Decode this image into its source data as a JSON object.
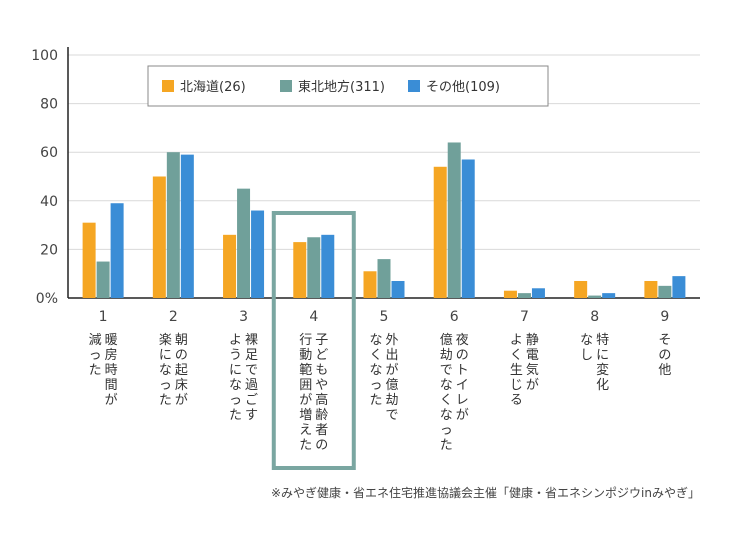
{
  "chart_data": {
    "type": "bar",
    "ylim": [
      0,
      100
    ],
    "y_ticks": [
      "100",
      "80",
      "60",
      "40",
      "20",
      "0%"
    ],
    "y_tick_values": [
      100,
      80,
      60,
      40,
      20,
      0
    ],
    "categories": [
      "1",
      "2",
      "3",
      "4",
      "5",
      "6",
      "7",
      "8",
      "9"
    ],
    "category_labels": [
      [
        "暖房時間が",
        "減った"
      ],
      [
        "朝の起床が",
        "楽になった"
      ],
      [
        "裸足で過ごす",
        "ようになった"
      ],
      [
        "子どもや高齢者の",
        "行動範囲が増えた"
      ],
      [
        "外出が億劫で",
        "なくなった"
      ],
      [
        "夜のトイレが",
        "億劫でなくなった"
      ],
      [
        "静電気が",
        "よく生じる"
      ],
      [
        "特に変化",
        "なし"
      ],
      [
        "その他"
      ]
    ],
    "series": [
      {
        "name": "北海道(26)",
        "color": "#f5a623",
        "values": [
          31,
          50,
          26,
          23,
          11,
          54,
          3,
          7,
          7
        ]
      },
      {
        "name": "東北地方(311)",
        "color": "#70a09a",
        "values": [
          15,
          60,
          45,
          25,
          16,
          64,
          2,
          1,
          5
        ]
      },
      {
        "name": "その他(109)",
        "color": "#3a8dd6",
        "values": [
          39,
          59,
          36,
          26,
          7,
          57,
          4,
          2,
          9
        ]
      }
    ],
    "highlight_category": "4",
    "highlight_color": "#7aa6a1",
    "legend_position": "top-left inside plot",
    "grid": true
  },
  "source_note": "※みやぎ健康・省エネ住宅推進協議会主催「健康・省エネシンポジウinみやぎ」"
}
